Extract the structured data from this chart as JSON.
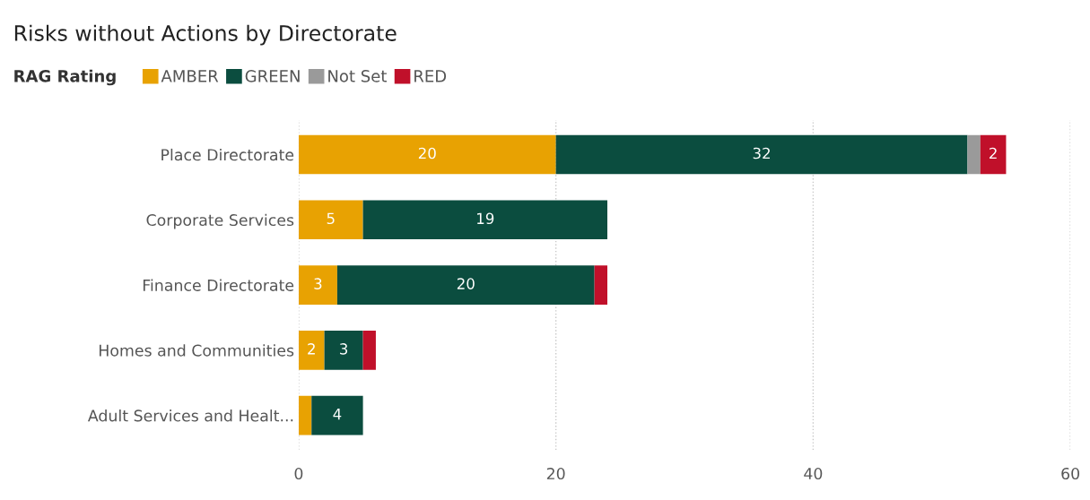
{
  "chart_data": {
    "type": "bar",
    "orientation": "horizontal",
    "stacked": true,
    "title": "Risks without Actions by Directorate",
    "legend_title": "RAG Rating",
    "legend": "top left",
    "grid": "x",
    "categories": [
      "Place Directorate",
      "Corporate Services",
      "Finance Directorate",
      "Homes and Communities",
      "Adult Services and Healt..."
    ],
    "series": [
      {
        "name": "AMBER",
        "color": "#e8a202",
        "values": [
          20,
          5,
          3,
          2,
          1
        ],
        "value_labels": [
          "20",
          "5",
          "3",
          "2",
          null
        ]
      },
      {
        "name": "GREEN",
        "color": "#0b4d3f",
        "values": [
          32,
          19,
          20,
          3,
          4
        ],
        "value_labels": [
          "32",
          "19",
          "20",
          "3",
          "4"
        ]
      },
      {
        "name": "Not Set",
        "color": "#9a9a9a",
        "values": [
          1,
          0,
          0,
          0,
          0
        ],
        "value_labels": [
          null,
          null,
          null,
          null,
          null
        ]
      },
      {
        "name": "RED",
        "color": "#c0102a",
        "values": [
          2,
          0,
          1,
          1,
          0
        ],
        "value_labels": [
          "2",
          null,
          null,
          null,
          null
        ]
      }
    ],
    "xlim": [
      0,
      60
    ],
    "xticks": [
      0,
      20,
      40,
      60
    ]
  }
}
